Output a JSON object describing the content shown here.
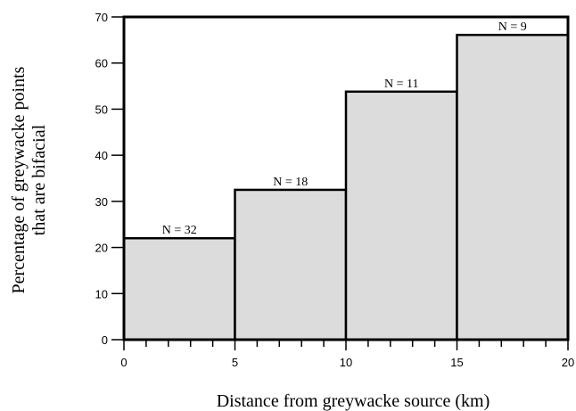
{
  "chart_data": {
    "type": "bar",
    "bins": [
      {
        "x0": 0,
        "x1": 5,
        "value": 22,
        "label": "N = 32"
      },
      {
        "x0": 5,
        "x1": 10,
        "value": 32.5,
        "label": "N = 18"
      },
      {
        "x0": 10,
        "x1": 15,
        "value": 53.8,
        "label": "N = 11"
      },
      {
        "x0": 15,
        "x1": 20,
        "value": 66.1,
        "label": "N = 9"
      }
    ],
    "xlabel": "Distance from greywacke source (km)",
    "ylabel_line1": "Percentage of greywacke points",
    "ylabel_line2": "that are bifacial",
    "xlim": [
      0,
      20
    ],
    "ylim": [
      0,
      70
    ],
    "xticks": [
      0,
      5,
      10,
      15,
      20
    ],
    "xminor_step": 1,
    "yticks": [
      0,
      10,
      20,
      30,
      40,
      50,
      60,
      70
    ],
    "grid": false
  }
}
